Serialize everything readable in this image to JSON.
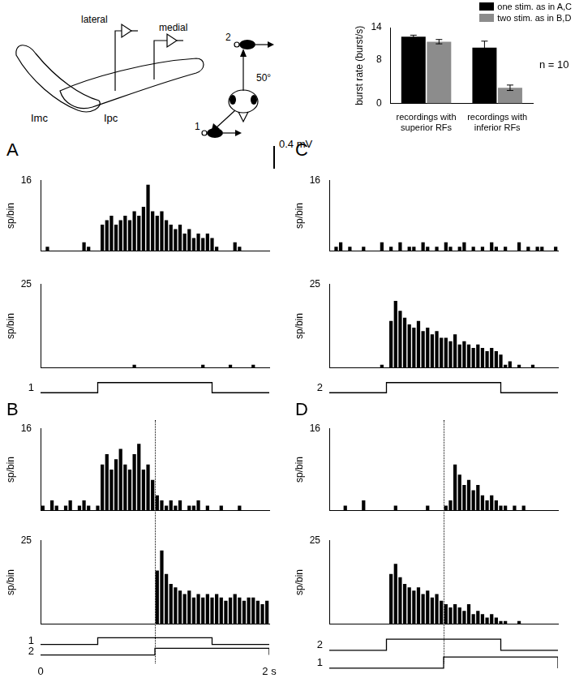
{
  "chart_data": {
    "type": "bar",
    "categories": [
      [
        "recordings with",
        "superior RFs"
      ],
      [
        "recordings with",
        "inferior RFs"
      ]
    ],
    "ylabel": "burst rate (burst/s)",
    "ylim": [
      0,
      14
    ],
    "yticks": [
      0,
      8,
      14
    ],
    "grid": false,
    "legend": "top-right",
    "series": [
      {
        "name": "one stim. as in A,C",
        "color": "#000000",
        "values": [
          12.3,
          10.3
        ],
        "errors": [
          0.3,
          1.2
        ]
      },
      {
        "name": "two stim. as in B,D",
        "color": "#8c8c8c",
        "values": [
          11.4,
          2.9
        ],
        "errors": [
          0.4,
          0.5
        ]
      }
    ],
    "annotations": [
      "n = 10"
    ]
  },
  "schematic": {
    "lateral": "lateral",
    "medial": "medial",
    "Imc": "Imc",
    "Ipc": "Ipc",
    "stimuli": [
      "1",
      "2"
    ],
    "angle": "50°"
  },
  "scale_bar": "0.4 mV",
  "panels": {
    "type": "histogram",
    "ylabel": "sp/bin",
    "xlim": [
      0,
      2
    ],
    "color": "#000000",
    "bins": [
      0,
      0.04,
      0.08,
      0.12,
      0.16,
      0.2,
      0.24,
      0.28,
      0.32,
      0.36,
      0.4,
      0.44,
      0.48,
      0.52,
      0.56,
      0.6,
      0.64,
      0.68,
      0.72,
      0.76,
      0.8,
      0.84,
      0.88,
      0.92,
      0.96,
      1,
      1.04,
      1.08,
      1.12,
      1.16,
      1.2,
      1.24,
      1.28,
      1.32,
      1.36,
      1.4,
      1.44,
      1.48,
      1.52,
      1.56,
      1.6,
      1.64,
      1.68,
      1.72,
      1.76,
      1.8,
      1.84,
      1.88,
      1.92,
      1.96,
      2
    ],
    "items": [
      {
        "label": "A",
        "recordings": [
          {
            "ylim": [
              0,
              16
            ],
            "yticks": [
              16
            ],
            "values": [
              0,
              1,
              0,
              0,
              0,
              0,
              0,
              0,
              0,
              2,
              1,
              0,
              0,
              6,
              7,
              8,
              6,
              7,
              8,
              7,
              9,
              8,
              10,
              15,
              9,
              8,
              9,
              7,
              6,
              5,
              6,
              4,
              5,
              3,
              4,
              3,
              4,
              3,
              1,
              0,
              0,
              0,
              2,
              1,
              0,
              0,
              0,
              0,
              0,
              0
            ]
          },
          {
            "ylim": [
              0,
              25
            ],
            "yticks": [
              25
            ],
            "values": [
              0,
              0,
              0,
              0,
              0,
              0,
              0,
              0,
              0,
              0,
              0,
              0,
              0,
              0,
              0,
              0,
              0,
              0,
              0,
              0,
              1,
              0,
              0,
              0,
              0,
              0,
              0,
              0,
              0,
              0,
              0,
              0,
              0,
              0,
              0,
              1,
              0,
              0,
              0,
              0,
              0,
              1,
              0,
              0,
              0,
              0,
              1,
              0,
              0,
              0
            ]
          }
        ],
        "stimuli": [
          {
            "name": "1",
            "on": 0.5,
            "off": 1.5
          }
        ]
      },
      {
        "label": "B",
        "recordings": [
          {
            "ylim": [
              0,
              16
            ],
            "yticks": [
              16
            ],
            "values": [
              1,
              0,
              2,
              1,
              0,
              1,
              2,
              0,
              1,
              2,
              1,
              0,
              1,
              9,
              11,
              8,
              10,
              12,
              9,
              8,
              11,
              13,
              8,
              9,
              6,
              3,
              2,
              1,
              2,
              1,
              2,
              0,
              1,
              1,
              2,
              0,
              1,
              0,
              0,
              1,
              0,
              0,
              0,
              1,
              0,
              0,
              0,
              0,
              0,
              0
            ]
          },
          {
            "ylim": [
              0,
              25
            ],
            "yticks": [
              25
            ],
            "values": [
              0,
              0,
              0,
              0,
              0,
              0,
              0,
              0,
              0,
              0,
              0,
              0,
              0,
              0,
              0,
              0,
              0,
              0,
              0,
              0,
              0,
              0,
              0,
              0,
              0,
              16,
              22,
              15,
              12,
              11,
              10,
              9,
              10,
              8,
              9,
              8,
              9,
              8,
              9,
              8,
              7,
              8,
              9,
              8,
              7,
              8,
              8,
              7,
              6,
              7
            ]
          }
        ],
        "stimuli": [
          {
            "name": "1",
            "on": 0.5,
            "off": 1.5
          },
          {
            "name": "2",
            "on": 1,
            "off": 2
          }
        ],
        "marker_time": 1,
        "xticks": [
          {
            "value": 0,
            "label": "0"
          },
          {
            "value": 2,
            "label": "2 s"
          }
        ]
      },
      {
        "label": "C",
        "recordings": [
          {
            "ylim": [
              0,
              16
            ],
            "yticks": [
              16
            ],
            "values": [
              0,
              1,
              2,
              0,
              1,
              0,
              0,
              1,
              0,
              0,
              0,
              2,
              0,
              1,
              0,
              2,
              0,
              1,
              1,
              0,
              2,
              1,
              0,
              1,
              0,
              2,
              1,
              0,
              1,
              2,
              0,
              1,
              0,
              1,
              0,
              2,
              1,
              0,
              1,
              0,
              0,
              2,
              0,
              1,
              0,
              1,
              1,
              0,
              0,
              1
            ]
          },
          {
            "ylim": [
              0,
              25
            ],
            "yticks": [
              25
            ],
            "values": [
              0,
              0,
              0,
              0,
              0,
              0,
              0,
              0,
              0,
              0,
              0,
              1,
              0,
              14,
              20,
              17,
              15,
              13,
              12,
              14,
              11,
              12,
              10,
              11,
              9,
              9,
              8,
              10,
              7,
              8,
              7,
              6,
              7,
              6,
              5,
              6,
              5,
              4,
              1,
              2,
              0,
              1,
              0,
              0,
              1,
              0,
              0,
              0,
              0,
              0
            ]
          }
        ],
        "stimuli": [
          {
            "name": "2",
            "on": 0.5,
            "off": 1.5
          }
        ]
      },
      {
        "label": "D",
        "recordings": [
          {
            "ylim": [
              0,
              16
            ],
            "yticks": [
              16
            ],
            "values": [
              0,
              0,
              0,
              1,
              0,
              0,
              0,
              2,
              0,
              0,
              0,
              0,
              0,
              0,
              1,
              0,
              0,
              0,
              0,
              0,
              0,
              1,
              0,
              0,
              0,
              1,
              2,
              9,
              7,
              5,
              6,
              4,
              5,
              3,
              2,
              3,
              2,
              1,
              1,
              0,
              1,
              0,
              1,
              0,
              0,
              0,
              0,
              0,
              0,
              0
            ]
          },
          {
            "ylim": [
              0,
              25
            ],
            "yticks": [
              25
            ],
            "values": [
              0,
              0,
              0,
              0,
              0,
              0,
              0,
              0,
              0,
              0,
              0,
              0,
              0,
              15,
              18,
              14,
              12,
              11,
              10,
              11,
              9,
              10,
              8,
              9,
              7,
              6,
              5,
              6,
              5,
              4,
              6,
              3,
              4,
              3,
              2,
              3,
              2,
              1,
              1,
              0,
              0,
              1,
              0,
              0,
              0,
              0,
              0,
              0,
              0,
              0
            ]
          }
        ],
        "stimuli": [
          {
            "name": "2",
            "on": 0.5,
            "off": 1.5
          },
          {
            "name": "1",
            "on": 1,
            "off": 2
          }
        ],
        "marker_time": 1
      }
    ]
  }
}
